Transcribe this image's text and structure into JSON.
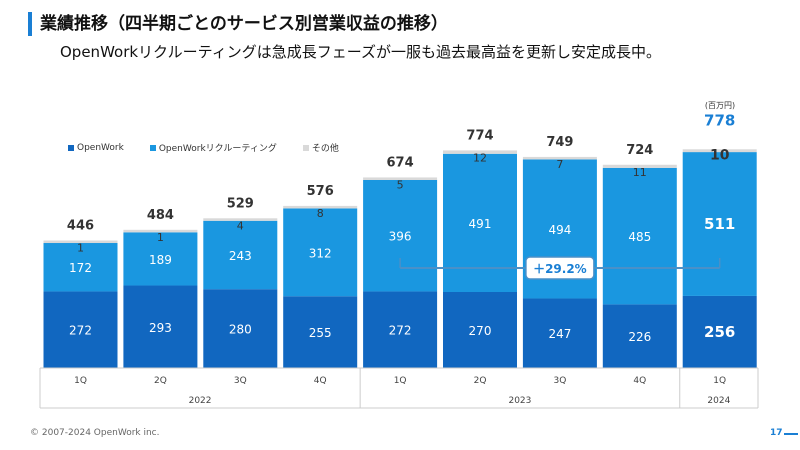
{
  "header": {
    "title": "業績推移（四半期ごとのサービス別営業収益の推移）",
    "subtitle": "OpenWorkリクルーティングは急成長フェーズが一服も過去最高益を更新し安定成長中。"
  },
  "unit_label": "(百万円)",
  "footer": {
    "copyright": "© 2007-2024 OpenWork inc.",
    "page": "17"
  },
  "colors": {
    "openwork": "#1167c0",
    "recruiting": "#1a97e0",
    "other": "#d9d9d9",
    "accent": "#1a7fd4",
    "highlight_box": "#4a90c8"
  },
  "chart_data": {
    "type": "bar",
    "stacked": true,
    "categories": [
      "1Q",
      "2Q",
      "3Q",
      "4Q",
      "1Q",
      "2Q",
      "3Q",
      "4Q",
      "1Q"
    ],
    "years": [
      {
        "label": "2022",
        "count": 4
      },
      {
        "label": "2023",
        "count": 4
      },
      {
        "label": "2024",
        "count": 1
      }
    ],
    "series": [
      {
        "name": "OpenWork",
        "values": [
          272,
          293,
          280,
          255,
          272,
          270,
          247,
          226,
          256
        ]
      },
      {
        "name": "OpenWorkリクルーティング",
        "values": [
          172,
          189,
          243,
          312,
          396,
          491,
          494,
          485,
          511
        ]
      },
      {
        "name": "その他",
        "values": [
          1,
          1,
          4,
          8,
          5,
          12,
          7,
          11,
          10
        ]
      }
    ],
    "totals": [
      446,
      484,
      529,
      576,
      674,
      774,
      749,
      724,
      778
    ],
    "highlight_index": 8,
    "annotation": {
      "text": "＋29.2%",
      "from_index": 4,
      "to_index": 8
    },
    "ylim": [
      0,
      800
    ],
    "xlabel": "",
    "ylabel": ""
  }
}
